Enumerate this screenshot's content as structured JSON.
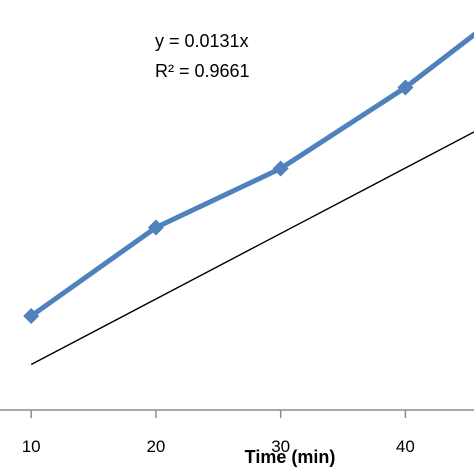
{
  "chart_data": {
    "type": "line",
    "title": "",
    "xlabel": "Time (min)",
    "ylabel": "",
    "xlim": [
      7.5,
      45.5
    ],
    "ylim": [
      0.04,
      0.8
    ],
    "x_ticks": [
      "10",
      "20",
      "30",
      "40"
    ],
    "grid": false,
    "legend": "none",
    "series": [
      {
        "x": [
          10,
          20,
          30,
          40,
          46
        ],
        "values": [
          0.228,
          0.405,
          0.523,
          0.685,
          0.8
        ],
        "color": "#4F81BD",
        "marker": "diamond"
      }
    ],
    "trendline": {
      "slope": 0.0131,
      "color": "#000000",
      "x_range": [
        10,
        45.5
      ]
    },
    "annotations": {
      "equation": "y = 0.0131x",
      "r_squared": "R² = 0.9661"
    }
  }
}
